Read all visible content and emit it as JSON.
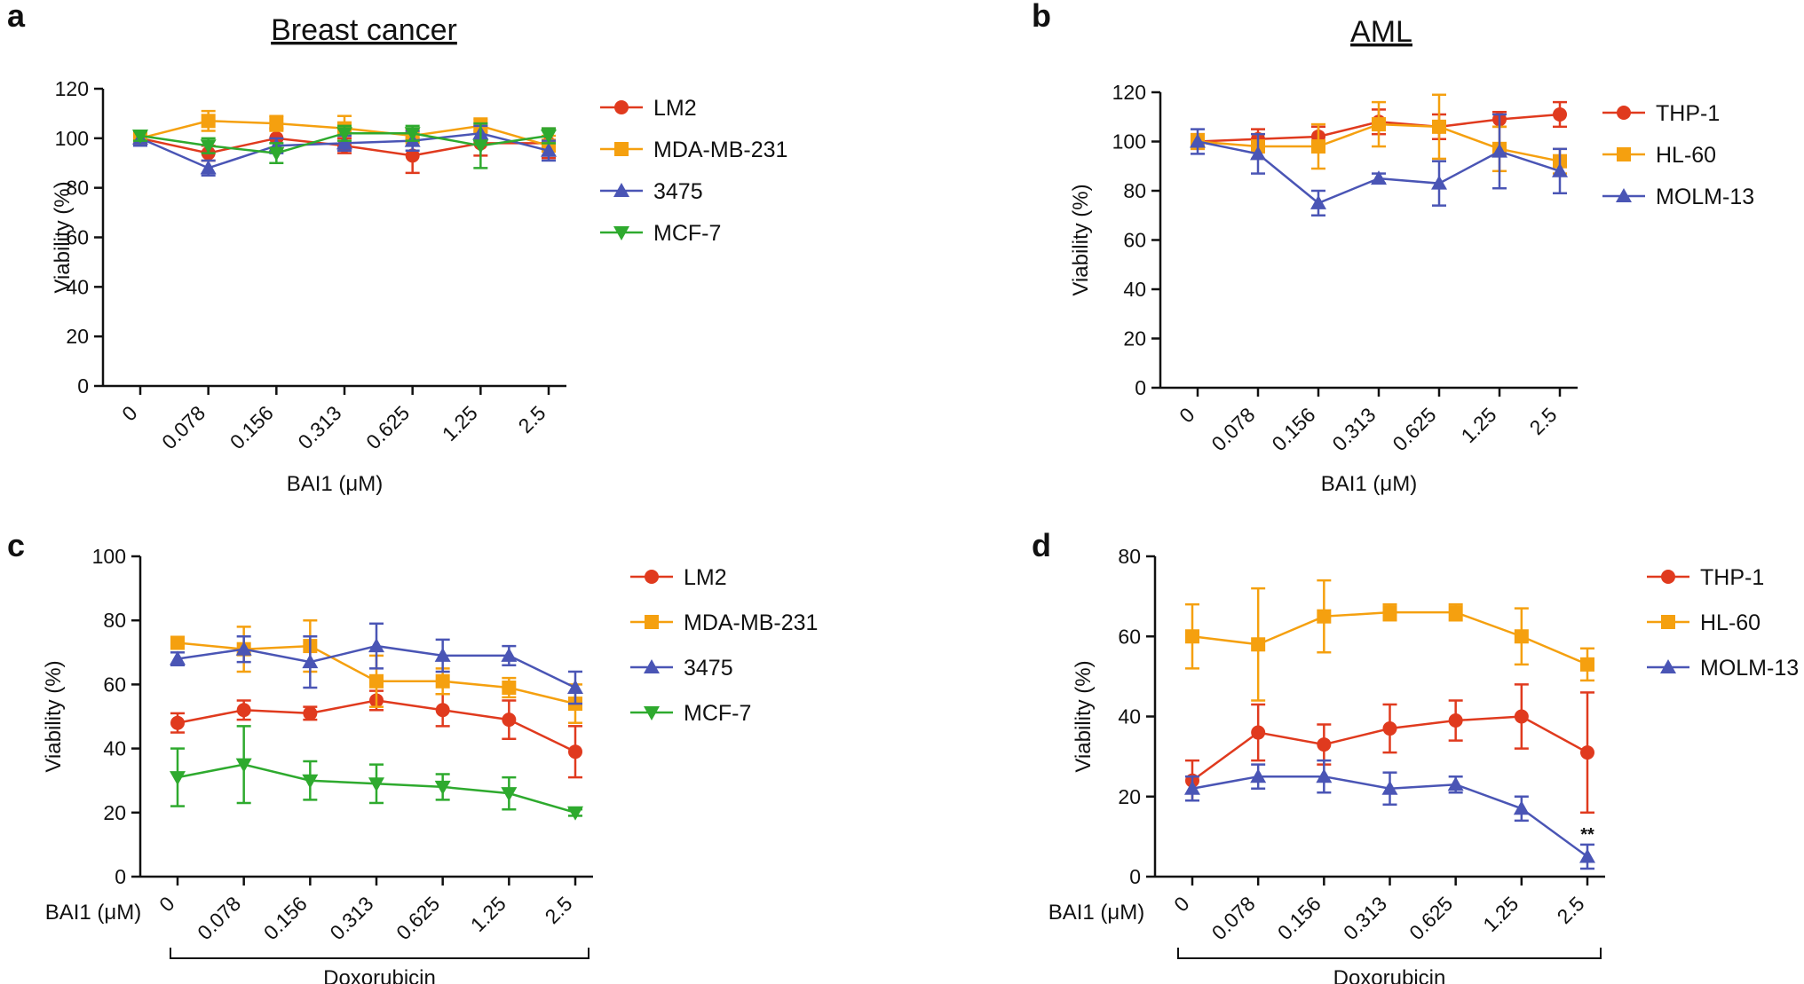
{
  "chart_data": [
    {
      "id": "a",
      "type": "line",
      "panel_letter": "a",
      "title": "Breast cancer",
      "xlabel": "BAI1 (μM)",
      "ylabel": "Viability (%)",
      "categories": [
        "0",
        "0.078",
        "0.156",
        "0.313",
        "0.625",
        "1.25",
        "2.5"
      ],
      "ylim": [
        0,
        120
      ],
      "yticks": [
        0,
        20,
        40,
        60,
        80,
        100,
        120
      ],
      "legend_position": "right",
      "series": [
        {
          "name": "LM2",
          "color": "#e03a1e",
          "marker": "circle",
          "values": [
            100,
            94,
            100,
            97,
            93,
            98,
            98
          ],
          "errors": [
            2,
            3,
            4,
            3,
            7,
            5,
            6
          ]
        },
        {
          "name": "MDA-MB-231",
          "color": "#f5a00f",
          "marker": "square",
          "values": [
            100,
            107,
            106,
            104,
            101,
            105,
            97
          ],
          "errors": [
            2,
            4,
            3,
            5,
            3,
            3,
            4
          ]
        },
        {
          "name": "3475",
          "color": "#4a55b5",
          "marker": "triangle-up",
          "values": [
            100,
            88,
            97,
            98,
            99,
            102,
            95
          ],
          "errors": [
            3,
            3,
            3,
            3,
            4,
            3,
            4
          ]
        },
        {
          "name": "MCF-7",
          "color": "#2eaa2e",
          "marker": "triangle-down",
          "values": [
            101,
            97,
            94,
            102,
            102,
            97,
            101
          ],
          "errors": [
            2,
            3,
            4,
            3,
            3,
            9,
            3
          ]
        }
      ]
    },
    {
      "id": "b",
      "type": "line",
      "panel_letter": "b",
      "title": "AML",
      "xlabel": "BAI1 (μM)",
      "ylabel": "Viability (%)",
      "categories": [
        "0",
        "0.078",
        "0.156",
        "0.313",
        "0.625",
        "1.25",
        "2.5"
      ],
      "ylim": [
        0,
        120
      ],
      "yticks": [
        0,
        20,
        40,
        60,
        80,
        100,
        120
      ],
      "legend_position": "right",
      "series": [
        {
          "name": "THP-1",
          "color": "#e03a1e",
          "marker": "circle",
          "values": [
            100,
            101,
            102,
            108,
            106,
            109,
            111
          ],
          "errors": [
            3,
            4,
            4,
            5,
            5,
            3,
            5
          ]
        },
        {
          "name": "HL-60",
          "color": "#f5a00f",
          "marker": "square",
          "values": [
            100,
            98,
            98,
            107,
            106,
            97,
            92
          ],
          "errors": [
            3,
            5,
            9,
            9,
            13,
            9,
            5
          ]
        },
        {
          "name": "MOLM-13",
          "color": "#4a55b5",
          "marker": "triangle-up",
          "values": [
            100,
            95,
            75,
            85,
            83,
            96,
            88
          ],
          "errors": [
            5,
            8,
            5,
            2,
            9,
            15,
            9
          ]
        }
      ]
    },
    {
      "id": "c",
      "type": "line",
      "panel_letter": "c",
      "title": "",
      "xlabel": "BAI1 (μM)",
      "ylabel": "Viability (%)",
      "group_label": "Doxorubicin",
      "categories": [
        "0",
        "0.078",
        "0.156",
        "0.313",
        "0.625",
        "1.25",
        "2.5"
      ],
      "ylim": [
        0,
        100
      ],
      "yticks": [
        0,
        20,
        40,
        60,
        80,
        100
      ],
      "legend_position": "right",
      "series": [
        {
          "name": "LM2",
          "color": "#e03a1e",
          "marker": "circle",
          "values": [
            48,
            52,
            51,
            55,
            52,
            49,
            39
          ],
          "errors": [
            3,
            3,
            2,
            3,
            5,
            6,
            8
          ]
        },
        {
          "name": "MDA-MB-231",
          "color": "#f5a00f",
          "marker": "square",
          "values": [
            73,
            71,
            72,
            61,
            61,
            59,
            54
          ],
          "errors": [
            1,
            7,
            8,
            8,
            4,
            3,
            6
          ]
        },
        {
          "name": "3475",
          "color": "#4a55b5",
          "marker": "triangle-up",
          "values": [
            68,
            71,
            67,
            72,
            69,
            69,
            59
          ],
          "errors": [
            2,
            4,
            8,
            7,
            5,
            3,
            5
          ]
        },
        {
          "name": "MCF-7",
          "color": "#2eaa2e",
          "marker": "triangle-down",
          "values": [
            31,
            35,
            30,
            29,
            28,
            26,
            20
          ],
          "errors": [
            9,
            12,
            6,
            6,
            4,
            5,
            1
          ]
        }
      ]
    },
    {
      "id": "d",
      "type": "line",
      "panel_letter": "d",
      "title": "",
      "xlabel": "BAI1 (μM)",
      "ylabel": "Viability (%)",
      "group_label": "Doxorubicin",
      "categories": [
        "0",
        "0.078",
        "0.156",
        "0.313",
        "0.625",
        "1.25",
        "2.5"
      ],
      "ylim": [
        0,
        80
      ],
      "yticks": [
        0,
        20,
        40,
        60,
        80
      ],
      "legend_position": "right",
      "annotation": {
        "text": "**",
        "category": "2.5",
        "y": 8
      },
      "series": [
        {
          "name": "THP-1",
          "color": "#e03a1e",
          "marker": "circle",
          "values": [
            24,
            36,
            33,
            37,
            39,
            40,
            31
          ],
          "errors": [
            5,
            7,
            5,
            6,
            5,
            8,
            15
          ]
        },
        {
          "name": "HL-60",
          "color": "#f5a00f",
          "marker": "square",
          "values": [
            60,
            58,
            65,
            66,
            66,
            60,
            53
          ],
          "errors": [
            8,
            14,
            9,
            2,
            2,
            7,
            4
          ]
        },
        {
          "name": "MOLM-13",
          "color": "#4a55b5",
          "marker": "triangle-up",
          "values": [
            22,
            25,
            25,
            22,
            23,
            17,
            5
          ],
          "errors": [
            3,
            3,
            4,
            4,
            2,
            3,
            3
          ]
        }
      ]
    }
  ]
}
